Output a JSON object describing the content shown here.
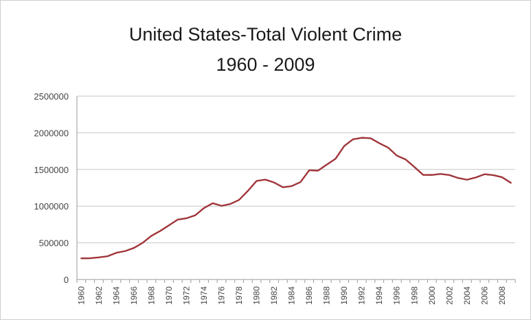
{
  "chart_data": {
    "type": "line",
    "title": "United States-Total Violent Crime",
    "subtitle": "1960 - 2009",
    "xlabel": "",
    "ylabel": "",
    "ylim": [
      0,
      2500000
    ],
    "yticks": [
      0,
      500000,
      1000000,
      1500000,
      2000000,
      2500000
    ],
    "ytick_labels": [
      "0",
      "500000",
      "1000000",
      "1500000",
      "2000000",
      "2500000"
    ],
    "xtick_labels": [
      "1960",
      "1962",
      "1964",
      "1966",
      "1968",
      "1970",
      "1972",
      "1974",
      "1976",
      "1978",
      "1980",
      "1982",
      "1984",
      "1986",
      "1988",
      "1990",
      "1992",
      "1994",
      "1996",
      "1998",
      "2000",
      "2002",
      "2004",
      "2006",
      "2008"
    ],
    "grid": true,
    "legend": "none",
    "line_color": "#a0353a",
    "x": [
      1960,
      1961,
      1962,
      1963,
      1964,
      1965,
      1966,
      1967,
      1968,
      1969,
      1970,
      1971,
      1972,
      1973,
      1974,
      1975,
      1976,
      1977,
      1978,
      1979,
      1980,
      1981,
      1982,
      1983,
      1984,
      1985,
      1986,
      1987,
      1988,
      1989,
      1990,
      1991,
      1992,
      1993,
      1994,
      1995,
      1996,
      1997,
      1998,
      1999,
      2000,
      2001,
      2002,
      2003,
      2004,
      2005,
      2006,
      2007,
      2008,
      2009
    ],
    "series": [
      {
        "values": [
          288460,
          289390,
          301510,
          316970,
          364220,
          387390,
          430180,
          499930,
          595010,
          661870,
          738820,
          816500,
          834900,
          875910,
          974720,
          1039710,
          1004210,
          1029580,
          1085550,
          1208030,
          1344520,
          1361820,
          1322390,
          1258090,
          1273280,
          1327770,
          1489170,
          1484000,
          1566220,
          1646040,
          1820130,
          1911770,
          1932270,
          1926020,
          1857670,
          1798790,
          1688540,
          1636100,
          1533890,
          1426040,
          1425490,
          1439480,
          1423680,
          1383680,
          1360090,
          1390750,
          1435120,
          1422970,
          1394460,
          1318400
        ]
      }
    ]
  }
}
